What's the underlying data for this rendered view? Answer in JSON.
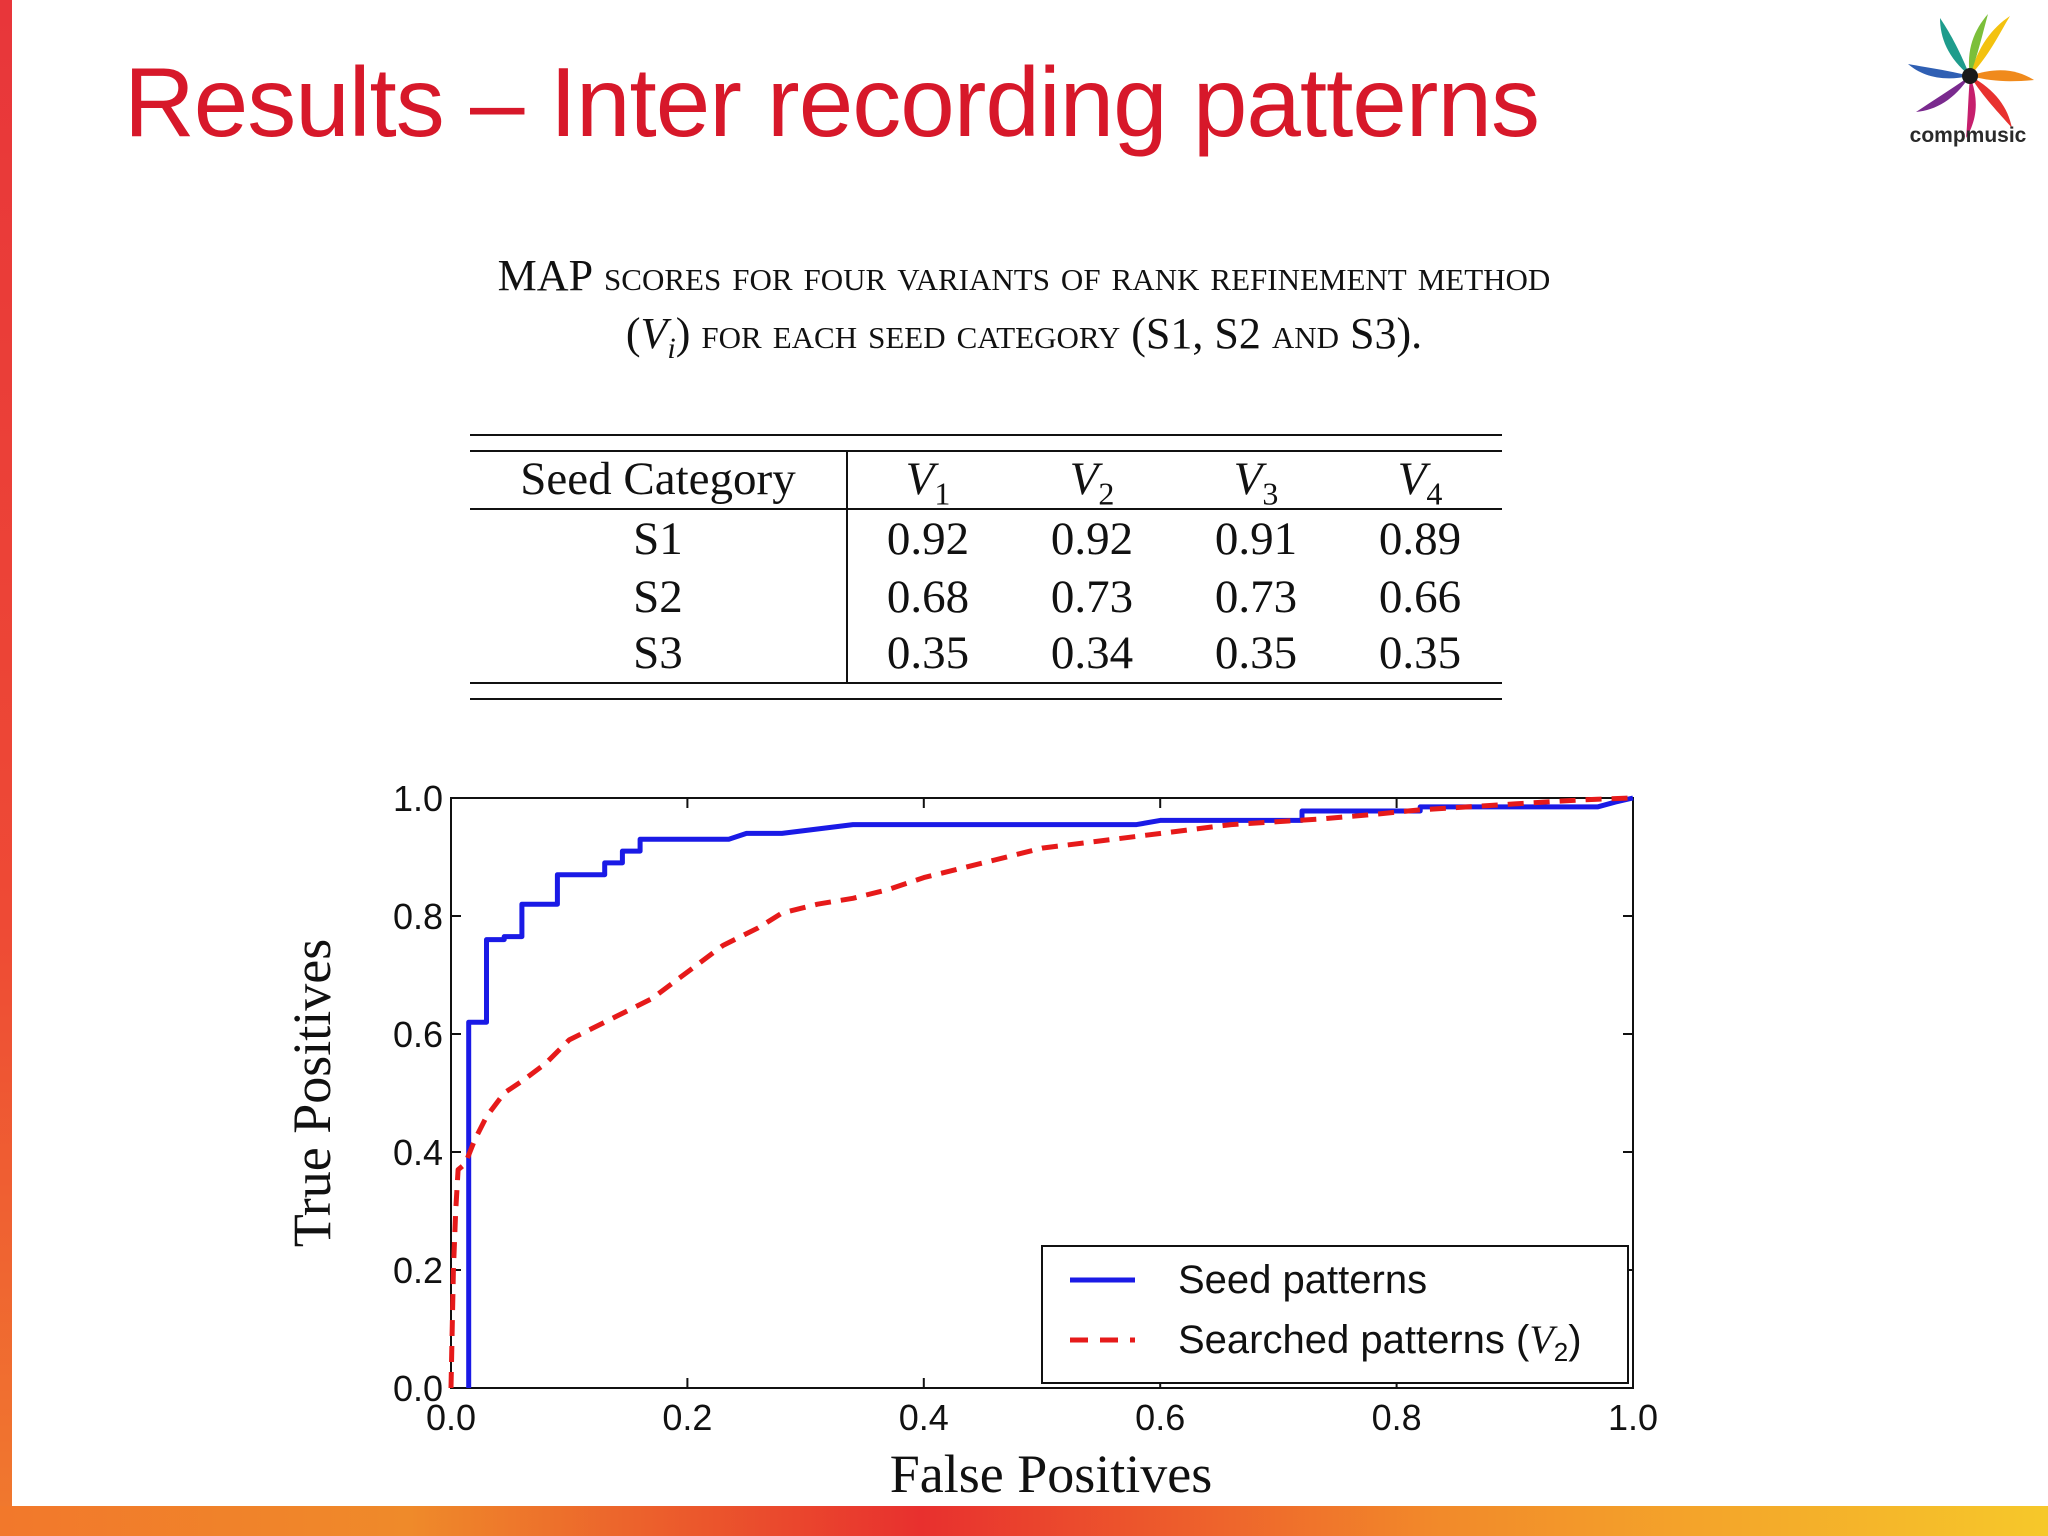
{
  "slide": {
    "title": "Results – Inter recording patterns",
    "logo_text": "compmusic",
    "colors": {
      "title": "#d7182a",
      "accent_stripe": "#e8363a"
    }
  },
  "caption": {
    "line1_big": "MAP",
    "line1_rest": " scores for four variants of rank refinement method",
    "line2_open": "(",
    "line2_var": "V",
    "line2_sub": "i",
    "line2_mid": ") for each seed category (",
    "line2_s": "S1, S2",
    "line2_and": " and ",
    "line2_s3": "S3).",
    "line2_close": ""
  },
  "table": {
    "header": {
      "label": "Seed Category",
      "cols": [
        {
          "var": "V",
          "sub": "1"
        },
        {
          "var": "V",
          "sub": "2"
        },
        {
          "var": "V",
          "sub": "3"
        },
        {
          "var": "V",
          "sub": "4"
        }
      ]
    },
    "rows": [
      {
        "category": "S1",
        "values": [
          "0.92",
          "0.92",
          "0.91",
          "0.89"
        ]
      },
      {
        "category": "S2",
        "values": [
          "0.68",
          "0.73",
          "0.73",
          "0.66"
        ]
      },
      {
        "category": "S3",
        "values": [
          "0.35",
          "0.34",
          "0.35",
          "0.35"
        ]
      }
    ]
  },
  "chart_data": {
    "type": "line",
    "title": "",
    "xlabel": "False Positives",
    "ylabel": "True Positives",
    "xlim": [
      0.0,
      1.0
    ],
    "ylim": [
      0.0,
      1.0
    ],
    "xticks": [
      "0.0",
      "0.2",
      "0.4",
      "0.6",
      "0.8",
      "1.0"
    ],
    "yticks": [
      "0.0",
      "0.2",
      "0.4",
      "0.6",
      "0.8",
      "1.0"
    ],
    "grid": false,
    "legend_position": "lower-right",
    "series": [
      {
        "name": "Seed patterns",
        "color": "#1a1ae6",
        "style": "solid",
        "x": [
          0.015,
          0.015,
          0.03,
          0.03,
          0.045,
          0.045,
          0.06,
          0.06,
          0.09,
          0.09,
          0.13,
          0.13,
          0.145,
          0.145,
          0.16,
          0.16,
          0.235,
          0.25,
          0.28,
          0.34,
          0.58,
          0.6,
          0.72,
          0.72,
          0.82,
          0.82,
          0.97,
          0.985,
          1.0
        ],
        "y": [
          0.0,
          0.62,
          0.62,
          0.76,
          0.76,
          0.765,
          0.765,
          0.82,
          0.82,
          0.87,
          0.87,
          0.89,
          0.89,
          0.91,
          0.91,
          0.93,
          0.93,
          0.94,
          0.94,
          0.955,
          0.955,
          0.962,
          0.962,
          0.978,
          0.978,
          0.985,
          0.985,
          0.993,
          1.0
        ]
      },
      {
        "name": "Searched patterns (V2)",
        "name_main": "Searched patterns (",
        "name_var": "V",
        "name_sub": "2",
        "name_close": ")",
        "color": "#e61a1a",
        "style": "dashed",
        "x": [
          0.0,
          0.002,
          0.004,
          0.006,
          0.012,
          0.02,
          0.03,
          0.045,
          0.06,
          0.08,
          0.1,
          0.12,
          0.14,
          0.17,
          0.19,
          0.21,
          0.23,
          0.26,
          0.28,
          0.31,
          0.34,
          0.37,
          0.4,
          0.43,
          0.46,
          0.5,
          0.54,
          0.58,
          0.62,
          0.66,
          0.7,
          0.74,
          0.78,
          0.82,
          0.86,
          0.9,
          0.94,
          0.97,
          1.0
        ],
        "y": [
          0.0,
          0.2,
          0.3,
          0.37,
          0.38,
          0.42,
          0.46,
          0.5,
          0.52,
          0.55,
          0.59,
          0.61,
          0.63,
          0.66,
          0.69,
          0.72,
          0.75,
          0.78,
          0.805,
          0.82,
          0.83,
          0.845,
          0.865,
          0.88,
          0.895,
          0.915,
          0.925,
          0.935,
          0.945,
          0.955,
          0.96,
          0.965,
          0.972,
          0.98,
          0.985,
          0.99,
          0.995,
          0.998,
          1.0
        ]
      }
    ]
  }
}
